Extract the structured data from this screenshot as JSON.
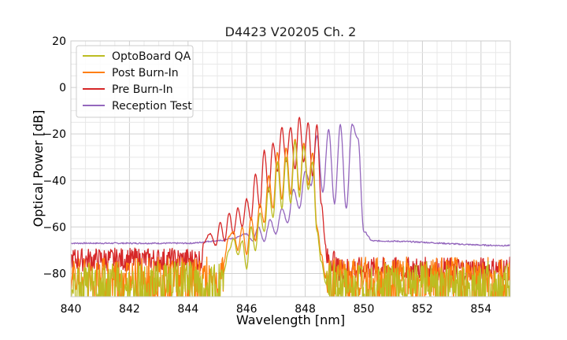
{
  "chart_data": {
    "type": "line",
    "title": "D4423 V20205 Ch. 2",
    "xlabel": "Wavelength [nm]",
    "ylabel": "Optical Power [dB]",
    "xlim": [
      840,
      855
    ],
    "ylim": [
      -90,
      20
    ],
    "xticks": [
      "840",
      "842",
      "844",
      "846",
      "848",
      "850",
      "852",
      "854"
    ],
    "yticks": [
      "20",
      "0",
      "−20",
      "−40",
      "−60",
      "−80"
    ],
    "grid": true,
    "legend_position": "top-left",
    "series": [
      {
        "name": "OptoBoard QA",
        "color": "#bcbd22",
        "noise_floor": -84,
        "x": [
          845.2,
          845.4,
          845.55,
          845.7,
          845.85,
          846.0,
          846.15,
          846.3,
          846.45,
          846.6,
          846.75,
          846.9,
          847.05,
          847.2,
          847.35,
          847.5,
          847.65,
          847.8,
          847.95,
          848.1,
          848.25,
          848.4,
          848.55,
          848.7
        ],
        "y": [
          -80,
          -70,
          -65,
          -72,
          -66,
          -78,
          -60,
          -70,
          -54,
          -62,
          -43,
          -56,
          -32,
          -52,
          -30,
          -50,
          -23,
          -47,
          -25,
          -44,
          -32,
          -62,
          -75,
          -84
        ]
      },
      {
        "name": "Post Burn-In",
        "color": "#ff7f0e",
        "noise_floor": -82,
        "x": [
          845.2,
          845.4,
          845.55,
          845.7,
          845.85,
          846.0,
          846.15,
          846.3,
          846.45,
          846.6,
          846.75,
          846.9,
          847.05,
          847.2,
          847.35,
          847.5,
          847.65,
          847.8,
          847.95,
          848.1,
          848.25,
          848.4,
          848.55,
          848.7
        ],
        "y": [
          -76,
          -64,
          -62,
          -70,
          -60,
          -72,
          -56,
          -66,
          -50,
          -58,
          -38,
          -52,
          -28,
          -48,
          -26,
          -46,
          -22,
          -44,
          -24,
          -42,
          -28,
          -60,
          -72,
          -82
        ]
      },
      {
        "name": "Pre Burn-In",
        "color": "#d62728",
        "noise_floor": -76,
        "x": [
          844.5,
          844.75,
          844.95,
          845.1,
          845.25,
          845.4,
          845.55,
          845.7,
          845.85,
          846.0,
          846.15,
          846.3,
          846.45,
          846.6,
          846.75,
          846.9,
          847.05,
          847.2,
          847.35,
          847.5,
          847.65,
          847.8,
          847.95,
          848.1,
          848.25,
          848.4,
          848.55,
          848.7
        ],
        "y": [
          -67,
          -63,
          -68,
          -58,
          -66,
          -54,
          -63,
          -52,
          -60,
          -48,
          -57,
          -37,
          -52,
          -27,
          -45,
          -24,
          -36,
          -17,
          -32,
          -17,
          -35,
          -13,
          -32,
          -15,
          -38,
          -16,
          -50,
          -68
        ]
      },
      {
        "name": "Reception Test",
        "color": "#9467bd",
        "noise_floor": -67,
        "x": [
          840,
          844,
          845,
          845.5,
          846.0,
          846.2,
          846.4,
          846.6,
          846.8,
          847.0,
          847.2,
          847.4,
          847.6,
          847.8,
          848.0,
          848.2,
          848.4,
          848.6,
          848.8,
          849.0,
          849.2,
          849.4,
          849.6,
          849.8,
          850.0,
          850.3,
          855
        ],
        "y": [
          -67,
          -67,
          -66,
          -65,
          -63,
          -66,
          -60,
          -66,
          -57,
          -63,
          -52,
          -58,
          -44,
          -52,
          -36,
          -42,
          -21,
          -45,
          -18,
          -50,
          -16,
          -52,
          -16,
          -22,
          -62,
          -66,
          -68
        ]
      }
    ]
  }
}
